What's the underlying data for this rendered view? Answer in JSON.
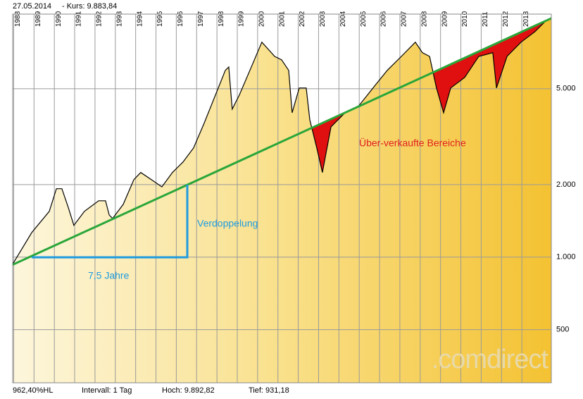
{
  "chart_data": {
    "type": "line",
    "header": "27.05.2014",
    "quote": "- Kurs: 9.883,84",
    "footer": [
      "962,40%HL",
      "Intervall: 1 Tag",
      "Hoch: 9.892,82",
      "Tief: 931,18"
    ],
    "log_scale": true,
    "grid": true,
    "xlim": [
      1987.95,
      2014.45
    ],
    "xticks": [
      1988,
      1989,
      1990,
      1991,
      1992,
      1993,
      1994,
      1995,
      1996,
      1997,
      1998,
      1999,
      2000,
      2001,
      2002,
      2003,
      2004,
      2005,
      2006,
      2007,
      2008,
      2009,
      2010,
      2011,
      2012,
      2013
    ],
    "ylim": [
      301,
      10200
    ],
    "yticks": [
      {
        "value": 500,
        "label": "500"
      },
      {
        "value": 1000,
        "label": "1.000"
      },
      {
        "value": 2000,
        "label": "2.000"
      },
      {
        "value": 5000,
        "label": "5.000"
      }
    ],
    "x": [
      1987.95,
      1988.37,
      1988.89,
      1989.75,
      1990.1,
      1990.37,
      1990.69,
      1990.96,
      1991.48,
      1992.18,
      1992.52,
      1992.7,
      1992.87,
      1993.39,
      1993.91,
      1994.25,
      1994.77,
      1995.29,
      1995.81,
      1996.33,
      1996.85,
      1997.37,
      1997.72,
      1998.41,
      1998.58,
      1998.75,
      1999.1,
      1999.62,
      2000.21,
      2000.84,
      2001.18,
      2001.53,
      2001.7,
      2002.05,
      2002.39,
      2002.57,
      2002.91,
      2003.19,
      2003.61,
      2004.3,
      2004.99,
      2005.68,
      2006.38,
      2007.07,
      2007.76,
      2008.11,
      2008.46,
      2008.8,
      2009.15,
      2009.5,
      2010.19,
      2010.88,
      2011.57,
      2011.75,
      2012.27,
      2012.96,
      2013.65,
      2014.17,
      2014.45
    ],
    "series": [
      {
        "color": "#000000",
        "values": [
          935,
          1070,
          1265,
          1549,
          1923,
          1923,
          1603,
          1355,
          1549,
          1714,
          1714,
          1496,
          1448,
          1656,
          2097,
          2245,
          2097,
          1957,
          2245,
          2483,
          2840,
          3594,
          4257,
          5957,
          6152,
          4113,
          4706,
          5957,
          7799,
          6808,
          6590,
          5957,
          3974,
          5036,
          5036,
          3714,
          2840,
          2245,
          3475,
          3974,
          4257,
          5036,
          5957,
          6808,
          7799,
          7050,
          6808,
          5036,
          3974,
          5036,
          5570,
          6808,
          7050,
          5036,
          6808,
          7799,
          8630,
          9550,
          9860
        ]
      }
    ],
    "trend": {
      "color": "#2aa63a",
      "x": [
        1987.95,
        2014.45
      ],
      "values": [
        930,
        9800
      ]
    },
    "annotations": {
      "oversold": "Über-verkaufte Bereiche",
      "doubling": "Verdoppelung",
      "years": "7,5 Jahre"
    },
    "watermark": ".comdirect"
  }
}
